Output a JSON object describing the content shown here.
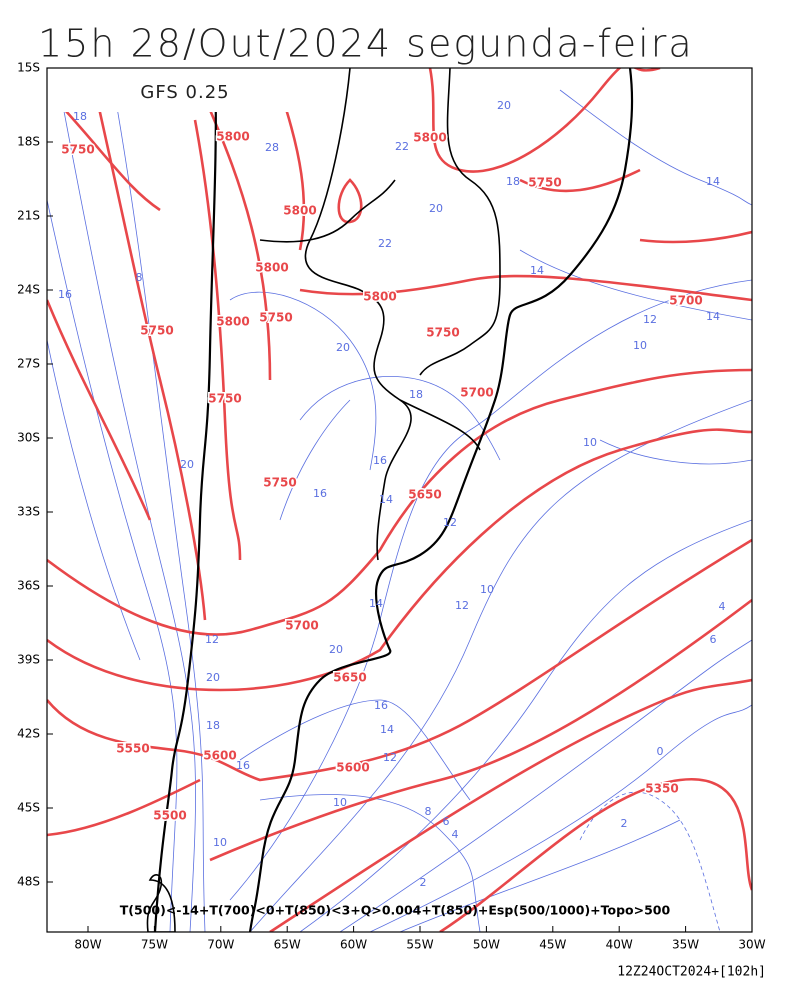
{
  "title": "15h 28/Out/2024 segunda-feira",
  "model": "GFS 0.25",
  "lat_labels": [
    "15S",
    "18S",
    "21S",
    "24S",
    "27S",
    "30S",
    "33S",
    "36S",
    "39S",
    "42S",
    "45S",
    "48S"
  ],
  "lon_labels": [
    "80W",
    "75W",
    "70W",
    "65W",
    "60W",
    "55W",
    "50W",
    "45W",
    "40W",
    "35W",
    "30W"
  ],
  "height_labels": [
    "5800",
    "5750",
    "5800",
    "5750",
    "5800",
    "5800",
    "5800",
    "5700",
    "5750",
    "5800",
    "5750",
    "5750",
    "5700",
    "5750",
    "5750",
    "5650",
    "5700",
    "5650",
    "5550",
    "5600",
    "5600",
    "5350",
    "5500"
  ],
  "thickness_labels": [
    "18",
    "20",
    "22",
    "28",
    "18",
    "14",
    "20",
    "8",
    "16",
    "22",
    "14",
    "12",
    "14",
    "20",
    "10",
    "18",
    "10",
    "20",
    "16",
    "16",
    "14",
    "12",
    "10",
    "12",
    "14",
    "4",
    "6",
    "20",
    "12",
    "20",
    "16",
    "14",
    "18",
    "12",
    "10",
    "8",
    "6",
    "4",
    "0",
    "2",
    "2",
    "16",
    "10"
  ],
  "legend": "T(500)<-14+T(700)<0+T(850)<3+Q>0.004+T(850)+Esp(500/1000)+Topo>500",
  "run": "12Z24OCT2024+[102h]"
}
